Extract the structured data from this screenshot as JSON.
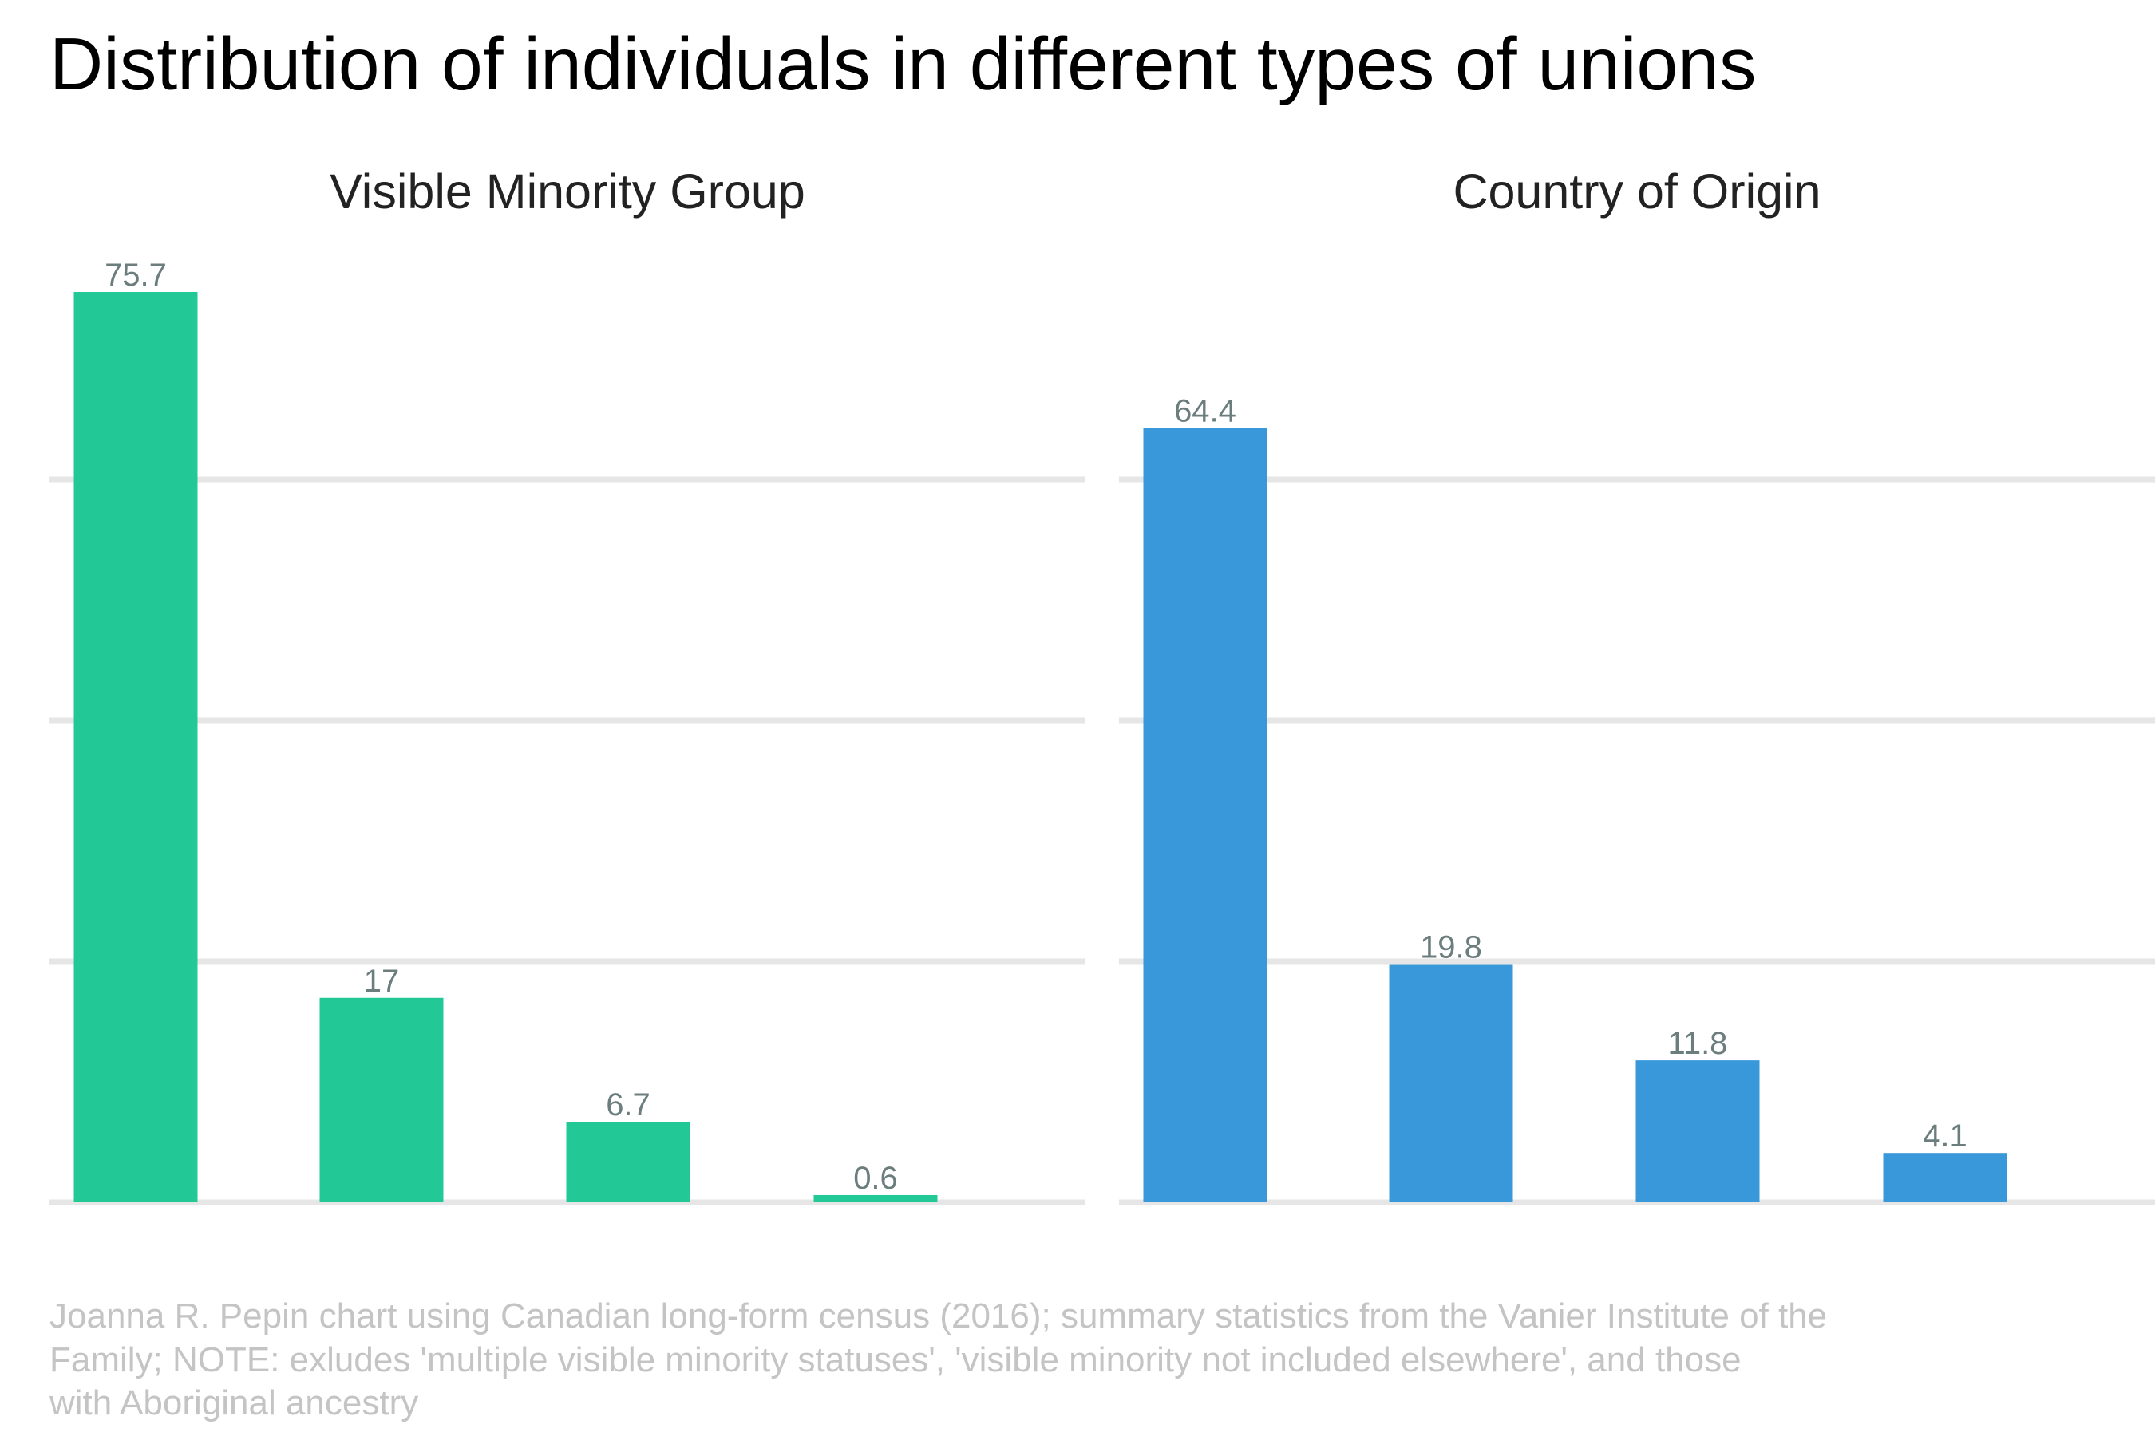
{
  "title": "Distribution of individuals in different types of unions",
  "caption_lines": [
    "Joanna R. Pepin chart using Canadian long-form census (2016); summary statistics from the Vanier Institute of the",
    "Family; NOTE: exludes 'multiple visible minority statuses', 'visible minority not included elsewhere', and those",
    "with Aboriginal ancestry"
  ],
  "chart_data": [
    {
      "type": "bar",
      "title": "Visible Minority Group",
      "values": [
        75.7,
        17,
        6.7,
        0.6
      ],
      "value_labels": [
        "75.7",
        "17",
        "6.7",
        "0.6"
      ],
      "ylim": [
        0,
        80
      ],
      "grid": true,
      "color": "#22c997"
    },
    {
      "type": "bar",
      "title": "Country of Origin",
      "values": [
        64.4,
        19.8,
        11.8,
        4.1
      ],
      "value_labels": [
        "64.4",
        "19.8",
        "11.8",
        "4.1"
      ],
      "ylim": [
        0,
        80
      ],
      "grid": true,
      "color": "#3898da"
    }
  ]
}
